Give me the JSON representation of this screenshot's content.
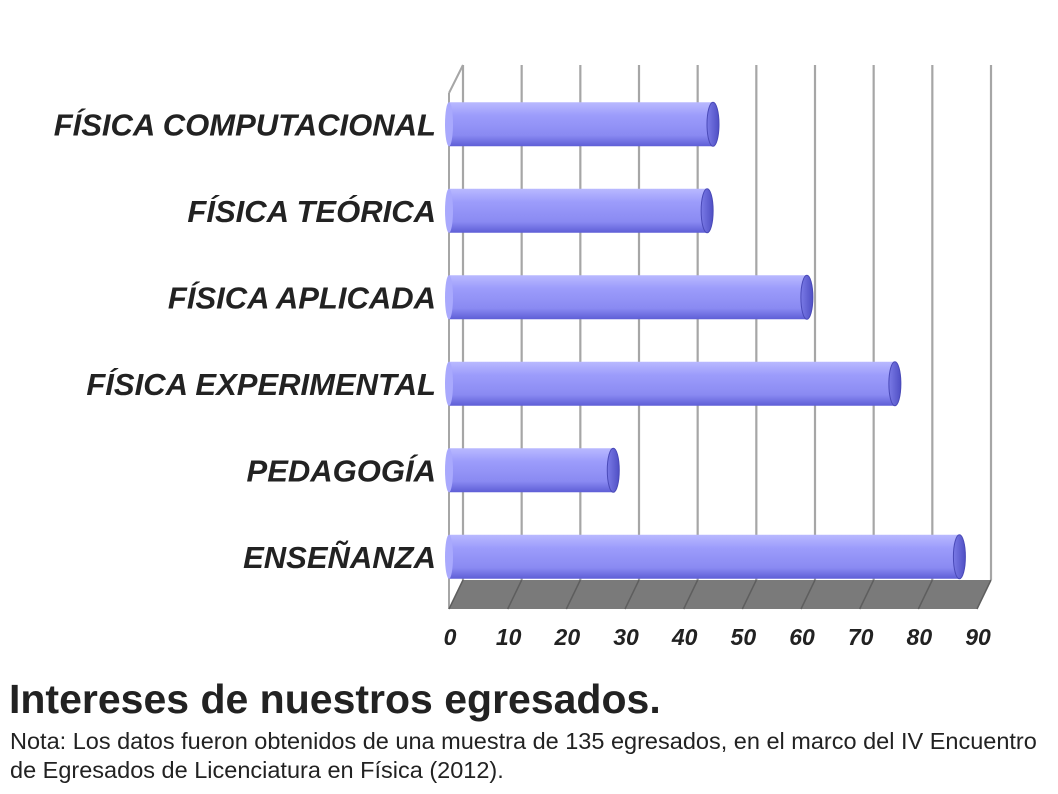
{
  "chart_data": {
    "type": "bar",
    "orientation": "horizontal",
    "categories": [
      "FÍSICA COMPUTACIONAL",
      "FÍSICA TEÓRICA",
      "FÍSICA APLICADA",
      "FÍSICA EXPERIMENTAL",
      "PEDAGOGÍA",
      "ENSEÑANZA"
    ],
    "values": [
      45,
      44,
      61,
      76,
      28,
      87
    ],
    "xlim": [
      0,
      90
    ],
    "xticks": [
      "0",
      "10",
      "20",
      "30",
      "40",
      "50",
      "60",
      "70",
      "80",
      "90"
    ],
    "grid": true,
    "legend": "none",
    "style": "3d-cylinder"
  },
  "caption": {
    "title": "Intereses de nuestros egresados.",
    "note": "Nota: Los datos fueron obtenidos de una muestra de 135 egresados, en el marco del IV Encuentro de Egresados de Licenciatura en Física (2012)."
  },
  "colors": {
    "bar": "#9595f7",
    "bar_light": "#c4c4ff",
    "bar_dark": "#5555d0",
    "floor": "#7a7a7a",
    "grid": "#a6a6a6",
    "text": "#222222"
  }
}
